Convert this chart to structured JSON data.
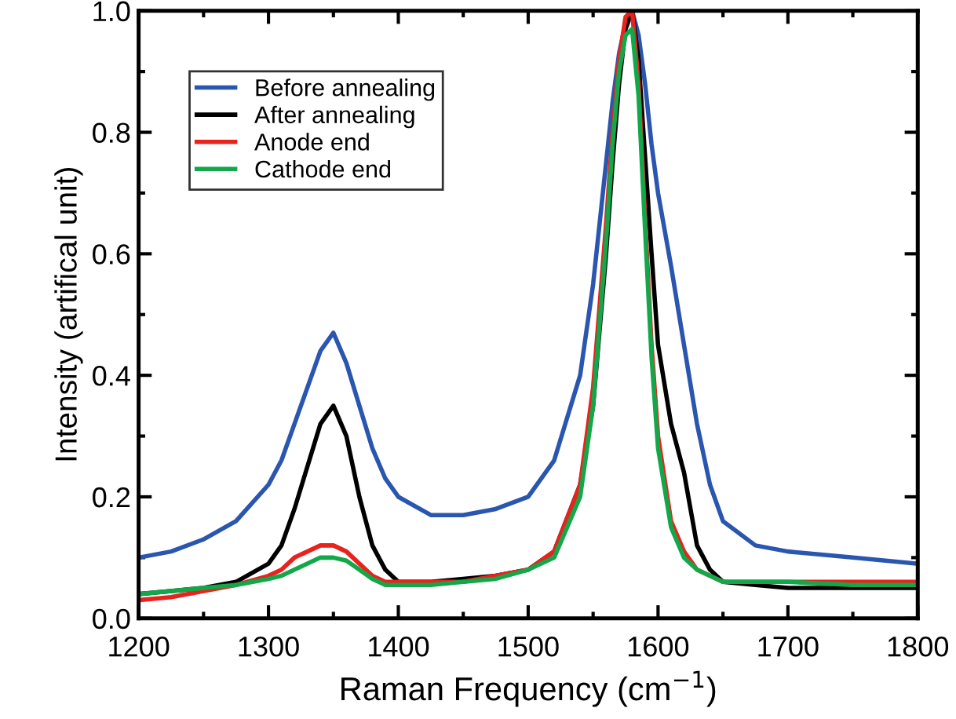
{
  "chart_data": {
    "type": "line",
    "xlabel": "Raman Frequency (cm$^{−1}$)",
    "ylabel": "Intensity (artifical unit)",
    "x": [
      1200,
      1225,
      1250,
      1275,
      1300,
      1310,
      1320,
      1330,
      1340,
      1350,
      1360,
      1370,
      1380,
      1390,
      1400,
      1425,
      1450,
      1475,
      1500,
      1520,
      1540,
      1550,
      1560,
      1565,
      1570,
      1575,
      1580,
      1585,
      1590,
      1595,
      1600,
      1610,
      1620,
      1630,
      1640,
      1650,
      1675,
      1700,
      1750,
      1800
    ],
    "series": [
      {
        "name": "Before annealing",
        "color": "#2a56b0",
        "values": [
          0.1,
          0.11,
          0.13,
          0.16,
          0.22,
          0.26,
          0.32,
          0.38,
          0.44,
          0.47,
          0.42,
          0.35,
          0.28,
          0.23,
          0.2,
          0.17,
          0.17,
          0.18,
          0.2,
          0.26,
          0.4,
          0.55,
          0.75,
          0.85,
          0.93,
          0.98,
          1.0,
          0.96,
          0.88,
          0.78,
          0.7,
          0.58,
          0.45,
          0.32,
          0.22,
          0.16,
          0.12,
          0.11,
          0.1,
          0.09
        ]
      },
      {
        "name": "After annealing",
        "color": "#000000",
        "values": [
          0.04,
          0.045,
          0.05,
          0.06,
          0.09,
          0.12,
          0.18,
          0.25,
          0.32,
          0.35,
          0.3,
          0.2,
          0.12,
          0.08,
          0.06,
          0.06,
          0.065,
          0.07,
          0.08,
          0.11,
          0.22,
          0.35,
          0.6,
          0.75,
          0.88,
          0.97,
          1.0,
          0.92,
          0.76,
          0.6,
          0.45,
          0.32,
          0.24,
          0.12,
          0.08,
          0.06,
          0.055,
          0.05,
          0.05,
          0.05
        ]
      },
      {
        "name": "Anode end",
        "color": "#e8231e",
        "values": [
          0.03,
          0.035,
          0.045,
          0.055,
          0.07,
          0.08,
          0.1,
          0.11,
          0.12,
          0.12,
          0.11,
          0.09,
          0.07,
          0.06,
          0.06,
          0.06,
          0.06,
          0.07,
          0.08,
          0.11,
          0.22,
          0.38,
          0.65,
          0.8,
          0.92,
          0.99,
          1.0,
          0.88,
          0.66,
          0.45,
          0.3,
          0.16,
          0.11,
          0.08,
          0.07,
          0.06,
          0.06,
          0.06,
          0.06,
          0.06
        ]
      },
      {
        "name": "Cathode end",
        "color": "#12a84a",
        "values": [
          0.04,
          0.045,
          0.05,
          0.055,
          0.065,
          0.07,
          0.08,
          0.09,
          0.1,
          0.1,
          0.095,
          0.08,
          0.065,
          0.055,
          0.055,
          0.055,
          0.06,
          0.065,
          0.08,
          0.1,
          0.2,
          0.35,
          0.62,
          0.78,
          0.9,
          0.96,
          0.97,
          0.86,
          0.64,
          0.43,
          0.28,
          0.15,
          0.1,
          0.08,
          0.07,
          0.06,
          0.06,
          0.06,
          0.055,
          0.055
        ]
      }
    ],
    "xlim": [
      1200,
      1800
    ],
    "ylim": [
      0,
      1.0
    ],
    "xticks": [
      1200,
      1300,
      1400,
      1500,
      1600,
      1700,
      1800
    ],
    "yticks": [
      {
        "value": 0,
        "label": "0.0"
      },
      {
        "value": 0.2,
        "label": "0.2"
      },
      {
        "value": 0.4,
        "label": "0.4"
      },
      {
        "value": 0.6,
        "label": "0.6"
      },
      {
        "value": 0.8,
        "label": "0.8"
      },
      {
        "value": 1.0,
        "label": "1.0"
      }
    ],
    "grid": false,
    "legend": "top left",
    "line_style": "solid"
  }
}
